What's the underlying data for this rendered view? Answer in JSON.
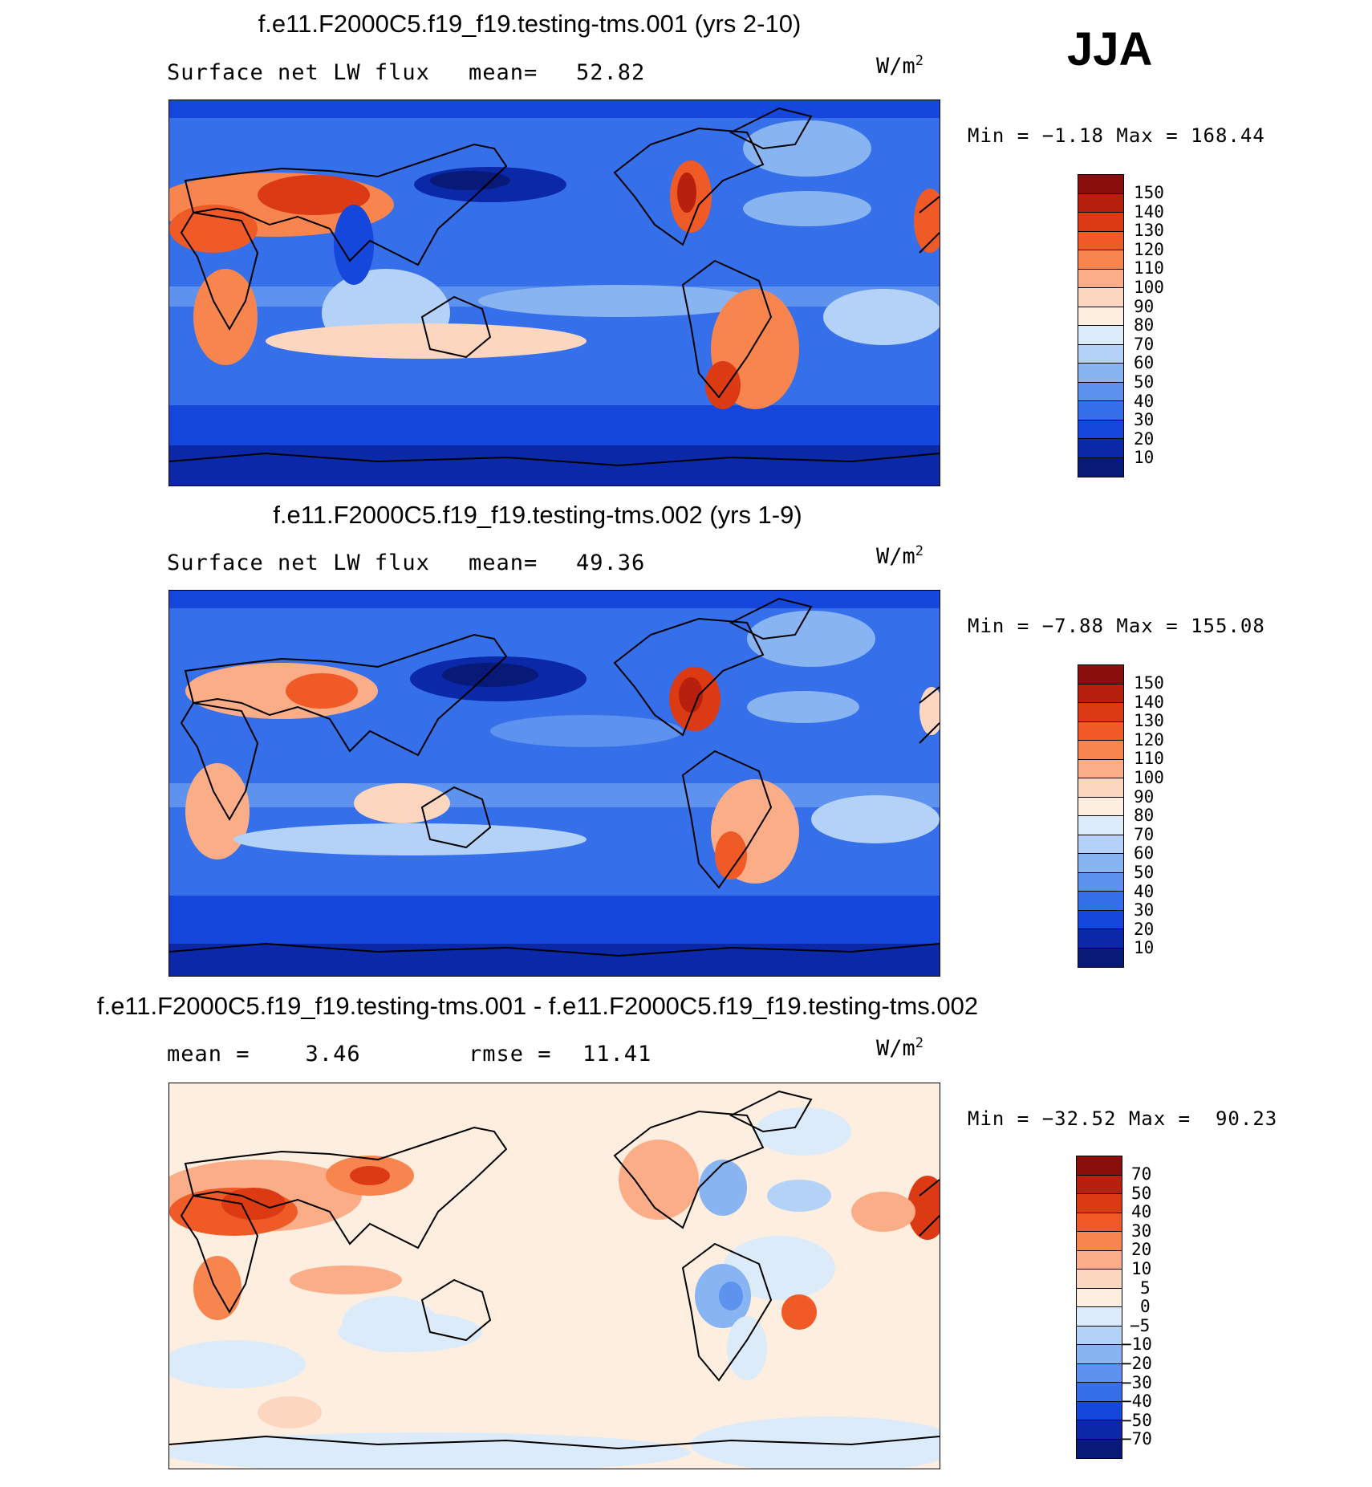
{
  "season": "JJA",
  "units_base": "W/m",
  "units_exp": "2",
  "panels": [
    {
      "title": "f.e11.F2000C5.f19_f19.testing-tms.001 (yrs 2-10)",
      "left_label": "Surface net LW flux",
      "stat1_label": "mean=",
      "stat1_value": "52.82",
      "minmax": "Min =   −1.18 Max = 168.44"
    },
    {
      "title": "f.e11.F2000C5.f19_f19.testing-tms.002 (yrs 1-9)",
      "left_label": "Surface net LW flux",
      "stat1_label": "mean=",
      "stat1_value": "49.36",
      "minmax": "Min =   −7.88 Max = 155.08"
    },
    {
      "title": "f.e11.F2000C5.f19_f19.testing-tms.001 - f.e11.F2000C5.f19_f19.testing-tms.002",
      "left_label": "mean =    3.46",
      "stat1_label": "rmse =",
      "stat1_value": "11.41",
      "minmax": "Min = −32.52 Max =  90.23"
    }
  ],
  "colorbars": {
    "absolute": {
      "labels": [
        "150",
        "140",
        "130",
        "120",
        "110",
        "100",
        "90",
        "80",
        "70",
        "60",
        "50",
        "40",
        "30",
        "20",
        "10"
      ],
      "colors": [
        "#8a0e0b",
        "#b8200e",
        "#dc3a12",
        "#f05a26",
        "#f7854d",
        "#fbad88",
        "#fdd6bf",
        "#fdeee0",
        "#dcebfa",
        "#b4d2f7",
        "#88b4f2",
        "#5d92ee",
        "#3570ea",
        "#1547dc",
        "#0a28a8",
        "#071a78"
      ]
    },
    "difference": {
      "labels": [
        "70",
        "50",
        "40",
        "30",
        "20",
        "10",
        "5",
        "0",
        "−5",
        "−10",
        "−20",
        "−30",
        "−40",
        "−50",
        "−70"
      ],
      "colors": [
        "#8a0e0b",
        "#b8200e",
        "#dc3a12",
        "#f05a26",
        "#f7854d",
        "#fbad88",
        "#fdd6bf",
        "#fdeee0",
        "#dcebfa",
        "#b4d2f7",
        "#88b4f2",
        "#5d92ee",
        "#3570ea",
        "#1547dc",
        "#0a28a8",
        "#071a78"
      ]
    }
  }
}
